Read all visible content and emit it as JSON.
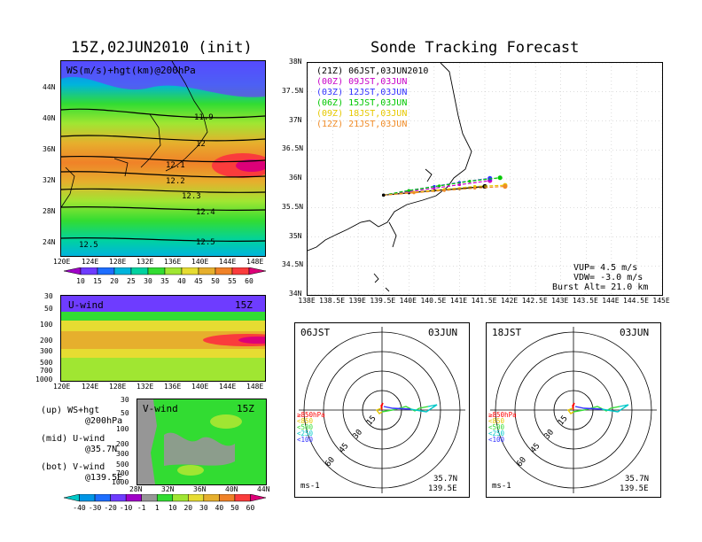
{
  "titles": {
    "left": "15Z,02JUN2010 (init)",
    "right": "Sonde Tracking Forecast"
  },
  "top_map": {
    "label": "WS(m/s)+hgt(km)@200hPa",
    "contours": [
      "11.9",
      "12",
      "12.1",
      "12.2",
      "12.3",
      "12.4",
      "12.5",
      "12.5"
    ],
    "lat_ticks": [
      "44N",
      "40N",
      "36N",
      "32N",
      "28N",
      "24N"
    ],
    "lon_ticks": [
      "120E",
      "124E",
      "128E",
      "132E",
      "136E",
      "140E",
      "144E",
      "148E"
    ],
    "colorbar": {
      "labels": [
        "10",
        "15",
        "20",
        "25",
        "30",
        "35",
        "40",
        "45",
        "50",
        "55",
        "60"
      ],
      "colors": [
        "#a000c8",
        "#6e3cff",
        "#1e6eff",
        "#00b4dc",
        "#00d2a0",
        "#32dc32",
        "#a0e632",
        "#e6dc32",
        "#e6af2d",
        "#f08228",
        "#fa3c3c",
        "#dc0078"
      ]
    }
  },
  "u_panel": {
    "label": "U-wind",
    "time": "15Z",
    "p_ticks": [
      "30",
      "50",
      "100",
      "200",
      "300",
      "500",
      "700",
      "1000"
    ],
    "lon_ticks": [
      "120E",
      "124E",
      "128E",
      "132E",
      "136E",
      "140E",
      "144E",
      "148E"
    ]
  },
  "v_panel": {
    "label": "V-wind",
    "time": "15Z",
    "p_ticks": [
      "30",
      "50",
      "100",
      "200",
      "300",
      "500",
      "700",
      "1000"
    ],
    "lat_ticks": [
      "28N",
      "32N",
      "36N",
      "40N",
      "44N"
    ],
    "colorbar": {
      "labels": [
        "-40",
        "-30",
        "-20",
        "-10",
        "-1",
        "1",
        "10",
        "20",
        "30",
        "40",
        "50",
        "60"
      ],
      "colors": [
        "#00c8c8",
        "#0096e6",
        "#1e6eff",
        "#6e3cff",
        "#a000c8",
        "#969696",
        "#32dc32",
        "#a0e632",
        "#e6dc32",
        "#e6af2d",
        "#f08228",
        "#fa3c3c",
        "#dc0078"
      ]
    }
  },
  "legend_notes": [
    {
      "a": "(up) WS+hgt",
      "b": "@200hPa"
    },
    {
      "a": "(mid) U-wind",
      "b": "@35.7N"
    },
    {
      "a": "(bot) V-wind",
      "b": "@139.5E"
    }
  ],
  "track": {
    "legend": [
      {
        "label": "(21Z) 06JST,03JUN2010",
        "color": "#000000"
      },
      {
        "label": "(00Z) 09JST,03JUN",
        "color": "#c800c8"
      },
      {
        "label": "(03Z) 12JST,03JUN",
        "color": "#3232ff"
      },
      {
        "label": "(06Z) 15JST,03JUN",
        "color": "#00c800"
      },
      {
        "label": "(09Z) 18JST,03JUN",
        "color": "#e6c800"
      },
      {
        "label": "(12Z) 21JST,03JUN",
        "color": "#f08c28"
      }
    ],
    "lat_ticks": [
      "38N",
      "37.5N",
      "37N",
      "36.5N",
      "36N",
      "35.5N",
      "35N",
      "34.5N",
      "34N"
    ],
    "lon_ticks": [
      "138E",
      "138.5E",
      "139E",
      "139.5E",
      "140E",
      "140.5E",
      "141E",
      "141.5E",
      "142E",
      "142.5E",
      "143E",
      "143.5E",
      "144E",
      "144.5E",
      "145E"
    ],
    "vup": "VUP= 4.5 m/s",
    "vdw": "VDW= -3.0 m/s",
    "burst": "Burst Alt= 21.0 km"
  },
  "chart_data": [
    {
      "type": "line",
      "title": "Sonde Tracking Forecast",
      "xlim": [
        138,
        145
      ],
      "ylim": [
        34,
        38
      ],
      "series": [
        {
          "name": "(21Z) 06JST,03JUN2010",
          "x": [
            139.5,
            140.0,
            140.5,
            141.0,
            141.5
          ],
          "y": [
            35.72,
            35.76,
            35.8,
            35.83,
            35.87
          ]
        },
        {
          "name": "(00Z) 09JST,03JUN",
          "x": [
            139.5,
            140.0,
            140.5,
            141.0,
            141.6
          ],
          "y": [
            35.72,
            35.78,
            35.84,
            35.9,
            35.97
          ]
        },
        {
          "name": "(03Z) 12JST,03JUN",
          "x": [
            139.5,
            140.0,
            140.5,
            141.0,
            141.6
          ],
          "y": [
            35.72,
            35.8,
            35.87,
            35.94,
            36.01
          ]
        },
        {
          "name": "(06Z) 15JST,03JUN",
          "x": [
            139.5,
            140.0,
            140.6,
            141.2,
            141.8
          ],
          "y": [
            35.72,
            35.8,
            35.88,
            35.96,
            36.02
          ]
        },
        {
          "name": "(09Z) 18JST,03JUN",
          "x": [
            139.5,
            140.1,
            140.7,
            141.3,
            141.9
          ],
          "y": [
            35.72,
            35.77,
            35.82,
            35.87,
            35.89
          ]
        },
        {
          "name": "(12Z) 21JST,03JUN",
          "x": [
            139.5,
            140.1,
            140.7,
            141.3,
            141.9
          ],
          "y": [
            35.72,
            35.76,
            35.8,
            35.84,
            35.87
          ]
        }
      ]
    }
  ],
  "hodo": [
    {
      "time": "06JST",
      "date": "03JUN",
      "loc1": "35.7N",
      "loc2": "139.5E",
      "unit": "ms-1",
      "rings": [
        "15",
        "30",
        "45",
        "60"
      ],
      "levels": [
        {
          "label": "≥850hPa",
          "color": "#ff0000"
        },
        {
          "label": "<850",
          "color": "#e6c800"
        },
        {
          "label": "<500",
          "color": "#32dc32"
        },
        {
          "label": "<250",
          "color": "#00c8c8"
        },
        {
          "label": "<100",
          "color": "#3232ff"
        }
      ]
    },
    {
      "time": "18JST",
      "date": "03JUN",
      "loc1": "35.7N",
      "loc2": "139.5E",
      "unit": "ms-1",
      "rings": [
        "15",
        "30",
        "45",
        "60"
      ],
      "levels": [
        {
          "label": "≥850hPa",
          "color": "#ff0000"
        },
        {
          "label": "<850",
          "color": "#e6c800"
        },
        {
          "label": "<500",
          "color": "#32dc32"
        },
        {
          "label": "<250",
          "color": "#00c8c8"
        },
        {
          "label": "<100",
          "color": "#3232ff"
        }
      ]
    }
  ]
}
